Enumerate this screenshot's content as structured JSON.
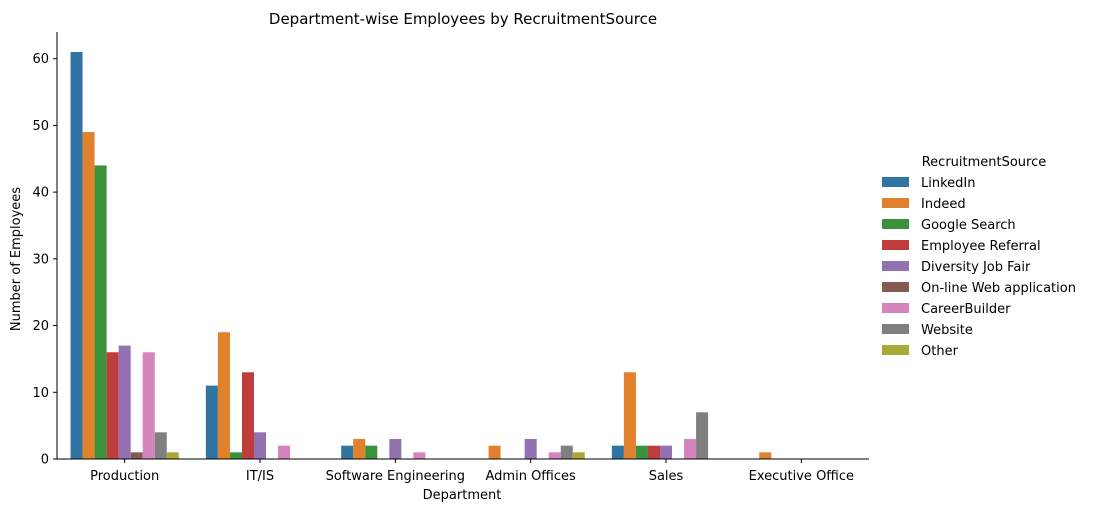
{
  "chart_data": {
    "type": "bar",
    "title": "Department-wise Employees by RecruitmentSource",
    "xlabel": "Department",
    "ylabel": "Number of Employees",
    "categories": [
      "Production",
      "IT/IS",
      "Software Engineering",
      "Admin Offices",
      "Sales",
      "Executive Office"
    ],
    "ylim": [
      0,
      64
    ],
    "yticks": [
      0,
      10,
      20,
      30,
      40,
      50,
      60
    ],
    "grid": false,
    "legend_position": "right",
    "legend_title": "RecruitmentSource",
    "series": [
      {
        "name": "LinkedIn",
        "color": "#3274a1",
        "values": [
          61,
          11,
          2,
          0,
          2,
          0
        ]
      },
      {
        "name": "Indeed",
        "color": "#e1812c",
        "values": [
          49,
          19,
          3,
          2,
          13,
          1
        ]
      },
      {
        "name": "Google Search",
        "color": "#3a923a",
        "values": [
          44,
          1,
          2,
          0,
          2,
          0
        ]
      },
      {
        "name": "Employee Referral",
        "color": "#c03d3e",
        "values": [
          16,
          13,
          0,
          0,
          2,
          0
        ]
      },
      {
        "name": "Diversity Job Fair",
        "color": "#9372b2",
        "values": [
          17,
          4,
          3,
          3,
          2,
          0
        ]
      },
      {
        "name": "On-line Web application",
        "color": "#845b53",
        "values": [
          1,
          0,
          0,
          0,
          0,
          0
        ]
      },
      {
        "name": "CareerBuilder",
        "color": "#d684bd",
        "values": [
          16,
          2,
          1,
          1,
          3,
          0
        ]
      },
      {
        "name": "Website",
        "color": "#7f7f7f",
        "values": [
          4,
          0,
          0,
          2,
          7,
          0
        ]
      },
      {
        "name": "Other",
        "color": "#a9aa35",
        "values": [
          1,
          0,
          0,
          1,
          0,
          0
        ]
      }
    ]
  }
}
